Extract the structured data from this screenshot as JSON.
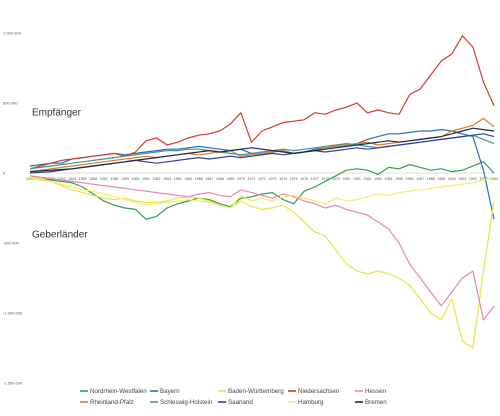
{
  "chart_data": {
    "type": "line",
    "annotations": {
      "upper": "Empfänger",
      "lower": "Geberländer"
    },
    "ylim": [
      -1500000,
      1000000
    ],
    "yticks": [
      1000000,
      500000,
      0,
      -500000,
      -1000000,
      -1500000
    ],
    "ytick_labels": [
      "1.000.000",
      "500.000",
      "0",
      "-500.000",
      "-1.000.000",
      "-1.500.000"
    ],
    "grid": false,
    "legend_position": "bottom",
    "x": [
      1950,
      1951,
      1952,
      1953,
      1954,
      1955,
      1956,
      1957,
      1958,
      1959,
      1960,
      1961,
      1962,
      1963,
      1964,
      1965,
      1966,
      1967,
      1968,
      1969,
      1970,
      1971,
      1972,
      1973,
      1974,
      1975,
      1976,
      1977,
      1978,
      1979,
      1980,
      1981,
      1982,
      1983,
      1984,
      1985,
      1986,
      1987,
      1988,
      1989,
      1990,
      1991,
      1992,
      1993,
      1994
    ],
    "x_tick_labels": [
      "1950",
      "1951",
      "1952",
      "1953",
      "1954",
      "1955",
      "1956",
      "1957",
      "1958",
      "1959",
      "1960",
      "1961",
      "1962",
      "1963",
      "1964",
      "1965",
      "1966",
      "1967",
      "1968",
      "1969",
      "1970",
      "1971",
      "1972",
      "1973",
      "1974",
      "1975",
      "1976",
      "1977",
      "1978",
      "1979",
      "1980",
      "1981",
      "1982",
      "1983",
      "1984",
      "1985",
      "1986",
      "1987",
      "1988",
      "1989",
      "1990",
      "1991",
      "1992",
      "1993",
      "1994"
    ],
    "series": [
      {
        "name": "Nordrhein-Westfalen",
        "color": "#2e9e4f",
        "values": [
          -20000,
          -40000,
          -50000,
          -60000,
          -70000,
          -100000,
          -150000,
          -200000,
          -230000,
          -250000,
          -260000,
          -330000,
          -310000,
          -250000,
          -220000,
          -200000,
          -180000,
          -190000,
          -220000,
          -240000,
          -180000,
          -170000,
          -150000,
          -140000,
          -190000,
          -220000,
          -130000,
          -100000,
          -60000,
          -20000,
          20000,
          30000,
          20000,
          -10000,
          40000,
          30000,
          60000,
          40000,
          20000,
          30000,
          10000,
          20000,
          50000,
          80000,
          0
        ]
      },
      {
        "name": "Bayern",
        "color": "#2a6fb5",
        "values": [
          50000,
          60000,
          70000,
          70000,
          100000,
          110000,
          120000,
          130000,
          140000,
          130000,
          140000,
          150000,
          160000,
          170000,
          170000,
          180000,
          190000,
          180000,
          170000,
          160000,
          170000,
          140000,
          130000,
          150000,
          160000,
          140000,
          150000,
          170000,
          180000,
          190000,
          200000,
          210000,
          240000,
          260000,
          280000,
          280000,
          290000,
          300000,
          300000,
          310000,
          300000,
          280000,
          260000,
          20000,
          -330000
        ]
      },
      {
        "name": "Baden-Württemberg",
        "color": "#e9e640",
        "values": [
          -40000,
          -50000,
          -60000,
          -90000,
          -120000,
          -140000,
          -160000,
          -180000,
          -190000,
          -180000,
          -200000,
          -210000,
          -210000,
          -200000,
          -180000,
          -170000,
          -180000,
          -200000,
          -230000,
          -250000,
          -200000,
          -240000,
          -260000,
          -250000,
          -230000,
          -280000,
          -350000,
          -420000,
          -450000,
          -550000,
          -650000,
          -700000,
          -720000,
          -700000,
          -720000,
          -750000,
          -800000,
          -900000,
          -1000000,
          -1050000,
          -900000,
          -1200000,
          -1250000,
          -700000,
          -200000
        ]
      },
      {
        "name": "Niedersachsen",
        "color": "#d63a2f",
        "values": [
          30000,
          50000,
          70000,
          90000,
          100000,
          110000,
          120000,
          130000,
          140000,
          120000,
          150000,
          230000,
          250000,
          200000,
          220000,
          250000,
          270000,
          280000,
          300000,
          350000,
          430000,
          220000,
          300000,
          330000,
          360000,
          370000,
          380000,
          430000,
          420000,
          450000,
          470000,
          500000,
          430000,
          450000,
          430000,
          420000,
          560000,
          600000,
          700000,
          800000,
          850000,
          980000,
          900000,
          650000,
          480000
        ]
      },
      {
        "name": "Hessen",
        "color": "#e985b5",
        "values": [
          -20000,
          -30000,
          -40000,
          -50000,
          -60000,
          -70000,
          -80000,
          -90000,
          -100000,
          -110000,
          -120000,
          -130000,
          -140000,
          -150000,
          -160000,
          -170000,
          -150000,
          -140000,
          -160000,
          -170000,
          -120000,
          -140000,
          -160000,
          -180000,
          -150000,
          -170000,
          -200000,
          -220000,
          -250000,
          -230000,
          -260000,
          -280000,
          -300000,
          -350000,
          -400000,
          -500000,
          -650000,
          -750000,
          -850000,
          -950000,
          -850000,
          -750000,
          -700000,
          -1050000,
          -950000
        ]
      },
      {
        "name": "Rheinland-Pfalz",
        "color": "#e27a2a",
        "values": [
          10000,
          20000,
          30000,
          40000,
          50000,
          60000,
          70000,
          80000,
          90000,
          100000,
          110000,
          120000,
          110000,
          120000,
          130000,
          140000,
          130000,
          140000,
          150000,
          160000,
          120000,
          130000,
          140000,
          150000,
          160000,
          140000,
          150000,
          160000,
          180000,
          190000,
          200000,
          210000,
          220000,
          200000,
          210000,
          220000,
          230000,
          240000,
          250000,
          260000,
          300000,
          320000,
          340000,
          390000,
          330000
        ]
      },
      {
        "name": "Schleswig-Holstein",
        "color": "#3d9a8f",
        "values": [
          30000,
          40000,
          50000,
          60000,
          70000,
          80000,
          90000,
          100000,
          110000,
          120000,
          130000,
          140000,
          150000,
          160000,
          160000,
          170000,
          170000,
          160000,
          150000,
          140000,
          130000,
          140000,
          150000,
          160000,
          170000,
          160000,
          170000,
          180000,
          190000,
          200000,
          210000,
          200000,
          190000,
          180000,
          190000,
          200000,
          210000,
          220000,
          230000,
          240000,
          250000,
          260000,
          270000,
          240000,
          210000
        ]
      },
      {
        "name": "Saarland",
        "color": "#2d3f9e",
        "values": [
          0,
          5000,
          10000,
          20000,
          30000,
          40000,
          50000,
          60000,
          70000,
          80000,
          90000,
          80000,
          70000,
          80000,
          90000,
          100000,
          110000,
          100000,
          110000,
          120000,
          110000,
          120000,
          130000,
          140000,
          130000,
          140000,
          150000,
          160000,
          150000,
          160000,
          170000,
          180000,
          170000,
          180000,
          190000,
          200000,
          210000,
          220000,
          230000,
          240000,
          250000,
          260000,
          270000,
          280000,
          260000
        ]
      },
      {
        "name": "Hamburg",
        "color": "#f7ea6a",
        "values": [
          -30000,
          -40000,
          -60000,
          -80000,
          -100000,
          -120000,
          -130000,
          -150000,
          -170000,
          -190000,
          -210000,
          -230000,
          -220000,
          -210000,
          -200000,
          -190000,
          -200000,
          -210000,
          -230000,
          -250000,
          -160000,
          -200000,
          -180000,
          -200000,
          -170000,
          -160000,
          -180000,
          -200000,
          -220000,
          -180000,
          -200000,
          -190000,
          -170000,
          -150000,
          -160000,
          -140000,
          -130000,
          -120000,
          -110000,
          -100000,
          -90000,
          -80000,
          -70000,
          -50000,
          -30000
        ]
      },
      {
        "name": "Bremen",
        "color": "#1f2a44",
        "values": [
          10000,
          15000,
          20000,
          25000,
          30000,
          40000,
          50000,
          60000,
          70000,
          80000,
          90000,
          100000,
          110000,
          120000,
          130000,
          140000,
          150000,
          160000,
          150000,
          160000,
          170000,
          180000,
          170000,
          160000,
          150000,
          140000,
          150000,
          160000,
          170000,
          180000,
          190000,
          200000,
          210000,
          220000,
          230000,
          220000,
          230000,
          240000,
          250000,
          260000,
          280000,
          300000,
          320000,
          310000,
          300000
        ]
      }
    ]
  }
}
